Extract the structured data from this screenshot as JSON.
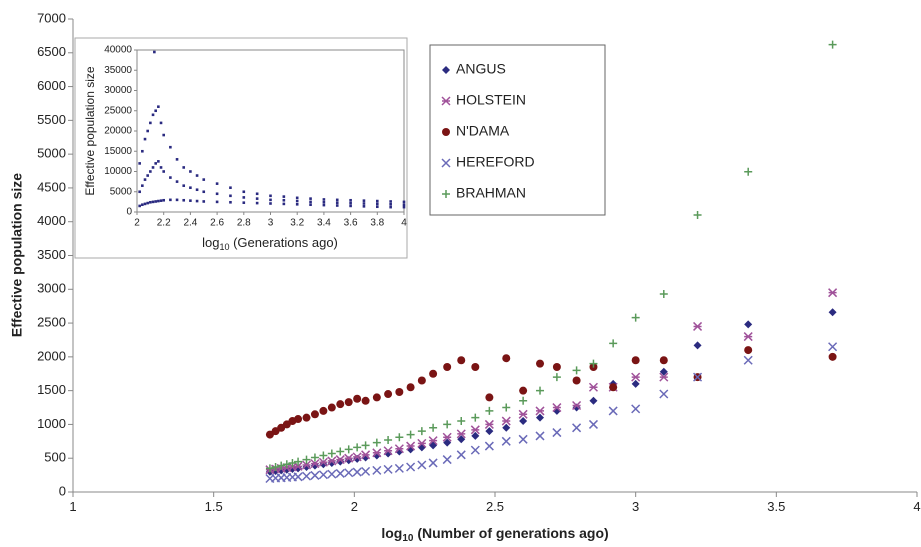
{
  "chart_data": [
    {
      "type": "scatter",
      "y_label": "Effective population size",
      "x_label": {
        "main": "log",
        "sub": "10",
        "tail": " (Number of generations ago)"
      },
      "xlim": [
        1,
        4
      ],
      "xticks": [
        1,
        1.5,
        2,
        2.5,
        3,
        3.5,
        4
      ],
      "ylim": [
        0,
        7000
      ],
      "yticks": [
        0,
        500,
        1000,
        1500,
        2000,
        2500,
        3000,
        3500,
        4000,
        4500,
        5000,
        5500,
        6000,
        6500,
        7000
      ],
      "x": [
        1.7,
        1.72,
        1.74,
        1.76,
        1.78,
        1.8,
        1.83,
        1.86,
        1.89,
        1.92,
        1.95,
        1.98,
        2.01,
        2.04,
        2.08,
        2.12,
        2.16,
        2.2,
        2.24,
        2.28,
        2.33,
        2.38,
        2.43,
        2.48,
        2.54,
        2.6,
        2.66,
        2.72,
        2.79,
        2.85,
        2.92,
        3.0,
        3.1,
        3.22,
        3.4,
        3.7
      ],
      "series": [
        {
          "name": "ANGUS",
          "color": "#2b2b80",
          "marker": "diamond",
          "values": [
            300,
            310,
            320,
            330,
            340,
            350,
            370,
            390,
            410,
            430,
            450,
            470,
            490,
            510,
            540,
            570,
            600,
            630,
            660,
            690,
            730,
            780,
            830,
            900,
            950,
            1050,
            1100,
            1200,
            1250,
            1350,
            1600,
            1600,
            1780,
            2170,
            2480,
            2660
          ]
        },
        {
          "name": "HOLSTEIN",
          "color": "#a0529a",
          "marker": "star",
          "values": [
            330,
            340,
            350,
            360,
            370,
            380,
            400,
            420,
            440,
            460,
            480,
            500,
            520,
            550,
            580,
            610,
            640,
            680,
            720,
            760,
            810,
            860,
            920,
            1000,
            1050,
            1150,
            1200,
            1250,
            1280,
            1550,
            1550,
            1700,
            1700,
            2450,
            2300,
            2950
          ]
        },
        {
          "name": "N'DAMA",
          "color": "#7a1414",
          "marker": "circle",
          "values": [
            850,
            900,
            950,
            1000,
            1050,
            1080,
            1100,
            1150,
            1200,
            1250,
            1300,
            1330,
            1380,
            1350,
            1400,
            1450,
            1480,
            1550,
            1650,
            1750,
            1850,
            1950,
            1850,
            1400,
            1980,
            1500,
            1900,
            1850,
            1650,
            1850,
            1550,
            1950,
            1950,
            1700,
            2100,
            2000
          ]
        },
        {
          "name": "HEREFORD",
          "color": "#6a6ab8",
          "marker": "x",
          "values": [
            200,
            205,
            210,
            215,
            220,
            225,
            235,
            245,
            255,
            265,
            275,
            285,
            295,
            305,
            320,
            335,
            350,
            370,
            400,
            430,
            480,
            550,
            620,
            680,
            750,
            780,
            830,
            880,
            950,
            1000,
            1200,
            1230,
            1450,
            1700,
            1950,
            2150
          ]
        },
        {
          "name": "BRAHMAN",
          "color": "#5a9a5a",
          "marker": "plus",
          "values": [
            350,
            370,
            390,
            410,
            430,
            450,
            480,
            510,
            540,
            570,
            600,
            630,
            660,
            690,
            730,
            770,
            810,
            850,
            900,
            950,
            1000,
            1050,
            1100,
            1200,
            1250,
            1350,
            1500,
            1700,
            1800,
            1900,
            2200,
            2580,
            2930,
            4100,
            4740,
            6620
          ]
        }
      ]
    },
    {
      "type": "scatter",
      "y_label": "Effective population size",
      "x_label": {
        "main": "log",
        "sub": "10",
        "tail": " (Generations ago)"
      },
      "xlim": [
        2,
        4
      ],
      "xticks": [
        2,
        2.2,
        2.4,
        2.6,
        2.8,
        3,
        3.2,
        3.4,
        3.6,
        3.8,
        4
      ],
      "ylim": [
        0,
        40000
      ],
      "yticks": [
        0,
        5000,
        10000,
        15000,
        20000,
        25000,
        30000,
        35000,
        40000
      ],
      "x": [
        2.02,
        2.04,
        2.06,
        2.08,
        2.1,
        2.12,
        2.14,
        2.16,
        2.18,
        2.2,
        2.25,
        2.3,
        2.35,
        2.4,
        2.45,
        2.5,
        2.6,
        2.7,
        2.8,
        2.9,
        3.0,
        3.1,
        3.2,
        3.3,
        3.4,
        3.5,
        3.6,
        3.7,
        3.8,
        3.9,
        4.0,
        2.02,
        2.04,
        2.06,
        2.08,
        2.1,
        2.12,
        2.14,
        2.16,
        2.18,
        2.2,
        2.25,
        2.3,
        2.35,
        2.4,
        2.45,
        2.5,
        2.6,
        2.7,
        2.8,
        2.9,
        3.0,
        3.1,
        3.2,
        3.3,
        3.4,
        3.5,
        3.6,
        3.7,
        3.8,
        3.9,
        4.0,
        2.02,
        2.04,
        2.06,
        2.08,
        2.1,
        2.12,
        2.14,
        2.16,
        2.18,
        2.2,
        2.25,
        2.3,
        2.35,
        2.4,
        2.45,
        2.5,
        2.6,
        2.7,
        2.8,
        2.9,
        3.0,
        3.1,
        3.2,
        3.3,
        3.4,
        3.5,
        3.6,
        3.7,
        3.8,
        3.9,
        4.0,
        2.13
      ],
      "series": [
        {
          "color": "#2a2a80",
          "marker": "square",
          "values": [
            12000,
            15000,
            18000,
            20000,
            22000,
            24000,
            25000,
            26000,
            22000,
            19000,
            16000,
            13000,
            11000,
            10000,
            9000,
            8000,
            7000,
            6000,
            5000,
            4500,
            4000,
            3800,
            3500,
            3300,
            3100,
            3000,
            2900,
            2800,
            2700,
            2600,
            2500,
            5000,
            6500,
            8000,
            9000,
            10000,
            11000,
            12000,
            12500,
            11000,
            10000,
            8500,
            7500,
            6500,
            6000,
            5500,
            5000,
            4500,
            4000,
            3600,
            3300,
            3000,
            2900,
            2700,
            2500,
            2400,
            2300,
            2200,
            2100,
            2000,
            1900,
            1800,
            1500,
            1800,
            2000,
            2200,
            2400,
            2500,
            2600,
            2700,
            2800,
            2900,
            3000,
            3000,
            2900,
            2800,
            2700,
            2600,
            2500,
            2400,
            2300,
            2200,
            2100,
            2000,
            1900,
            1800,
            1700,
            1600,
            1500,
            1400,
            1300,
            1200,
            1200,
            39500
          ]
        }
      ]
    }
  ]
}
